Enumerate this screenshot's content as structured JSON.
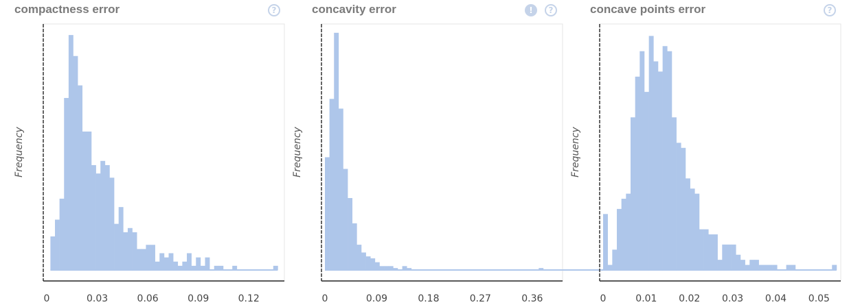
{
  "chart_data": [
    {
      "type": "bar",
      "title": "compactness error",
      "ylabel": "Frequency",
      "xlabel": "",
      "icons": [
        "help-icon"
      ],
      "bar_color": "#aec6ea",
      "xlim": [
        0,
        0.1354
      ],
      "ylim": [
        0,
        57
      ],
      "xticks": [
        "0",
        "0.03",
        "0.06",
        "0.09",
        "0.12"
      ],
      "xtick_values": [
        0,
        0.03,
        0.06,
        0.09,
        0.12
      ],
      "bin_start": 0.0022,
      "bin_width": 0.0027,
      "values": [
        8,
        12,
        17,
        41,
        56,
        51,
        44,
        33,
        33,
        25,
        23,
        26,
        25,
        22,
        11,
        15,
        9,
        10,
        9,
        5,
        5,
        6,
        6,
        2,
        4,
        3,
        4,
        2,
        1,
        2,
        4,
        1,
        3,
        1,
        3,
        0,
        1,
        1,
        0,
        0,
        1,
        0,
        0,
        0,
        0,
        0,
        0,
        0,
        0,
        1
      ]
    },
    {
      "type": "bar",
      "title": "concavity error",
      "ylabel": "Frequency",
      "xlabel": "",
      "icons": [
        "alert-icon",
        "help-icon"
      ],
      "bar_color": "#aec6ea",
      "xlim": [
        0,
        0.396
      ],
      "ylim": [
        0,
        123
      ],
      "xticks": [
        "0",
        "0.09",
        "0.18",
        "0.27",
        "0.36"
      ],
      "xtick_values": [
        0,
        0.09,
        0.18,
        0.27,
        0.36
      ],
      "bin_start": 0,
      "bin_width": 0.0079,
      "values": [
        58,
        88,
        122,
        83,
        52,
        37,
        24,
        13,
        9,
        7,
        6,
        4,
        2,
        2,
        2,
        1,
        0,
        2,
        1,
        0,
        0,
        0,
        0,
        0,
        0,
        0,
        0,
        0,
        0,
        0,
        0,
        0,
        0,
        0,
        0,
        0,
        0,
        0,
        0,
        0,
        0,
        0,
        0,
        0,
        0,
        0,
        0,
        1,
        0,
        0,
        0,
        0,
        0,
        0,
        0,
        0,
        0,
        0,
        0,
        0,
        0,
        0,
        0,
        0,
        0,
        0,
        0,
        1
      ]
    },
    {
      "type": "bar",
      "title": "concave points error",
      "ylabel": "Frequency",
      "xlabel": "",
      "icons": [
        "help-icon"
      ],
      "bar_color": "#aec6ea",
      "xlim": [
        0,
        0.0528
      ],
      "ylim": [
        0,
        47
      ],
      "xticks": [
        "0",
        "0.01",
        "0.02",
        "0.03",
        "0.04",
        "0.05"
      ],
      "xtick_values": [
        0,
        0.01,
        0.02,
        0.03,
        0.04,
        0.05
      ],
      "bin_start": 0,
      "bin_width": 0.00106,
      "values": [
        11,
        1,
        4,
        12,
        14,
        15,
        30,
        38,
        43,
        35,
        46,
        41,
        39,
        44,
        43,
        30,
        25,
        24,
        18,
        16,
        15,
        8,
        8,
        7,
        7,
        2,
        5,
        5,
        5,
        3,
        2,
        1,
        2,
        2,
        1,
        1,
        1,
        1,
        0,
        0,
        1,
        1,
        0,
        0,
        0,
        0,
        0,
        0,
        0,
        0,
        1
      ]
    }
  ]
}
